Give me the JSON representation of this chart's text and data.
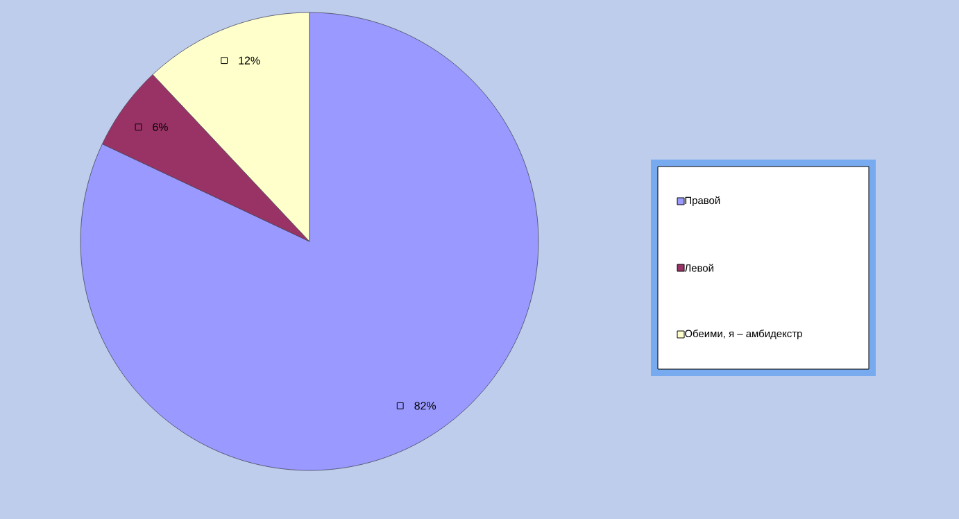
{
  "chart_data": {
    "type": "pie",
    "categories": [
      "Правой",
      "Левой",
      "Обеими, я – амбидекстр"
    ],
    "values": [
      82,
      6,
      12
    ],
    "value_labels": [
      "82%",
      "6%",
      "12%"
    ],
    "colors": [
      "#9999ff",
      "#993366",
      "#ffffcc"
    ],
    "legend": "right"
  }
}
